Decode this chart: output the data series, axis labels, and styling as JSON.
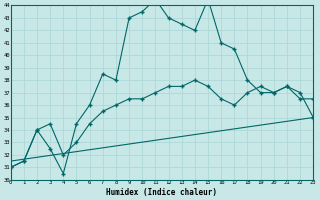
{
  "xlabel": "Humidex (Indice chaleur)",
  "bg_color": "#c8e8e8",
  "line_color": "#006666",
  "grid_color": "#b0d8d8",
  "xmin": 0,
  "xmax": 23,
  "ymin": 30,
  "ymax": 44,
  "xtick_labels": [
    "0",
    "1",
    "2",
    "3",
    "4",
    "5",
    "6",
    "7",
    "8",
    "9",
    "10",
    "11",
    "12",
    "13",
    "14",
    "15",
    "16",
    "17",
    "18",
    "19",
    "20",
    "21",
    "22",
    "23"
  ],
  "ytick_labels": [
    "30",
    "31",
    "32",
    "33",
    "34",
    "35",
    "36",
    "37",
    "38",
    "39",
    "40",
    "41",
    "42",
    "43",
    "44"
  ],
  "line1_x": [
    0,
    1,
    2,
    3,
    4,
    5,
    6,
    7,
    8,
    9,
    10,
    11,
    12,
    13,
    14,
    15,
    16,
    17,
    18,
    19,
    20,
    21,
    22,
    23
  ],
  "line1_y": [
    31.0,
    31.5,
    34.0,
    32.5,
    30.5,
    34.5,
    36.0,
    38.5,
    38.0,
    43.0,
    43.5,
    44.5,
    43.0,
    42.5,
    42.0,
    44.5,
    41.0,
    40.5,
    38.0,
    37.0,
    37.0,
    37.5,
    36.5,
    36.5
  ],
  "line2_x": [
    0,
    1,
    2,
    3,
    4,
    5,
    6,
    7,
    8,
    9,
    10,
    11,
    12,
    13,
    14,
    15,
    16,
    17,
    18,
    19,
    20,
    21,
    22,
    23
  ],
  "line2_y": [
    31.0,
    31.5,
    34.0,
    34.5,
    32.0,
    33.0,
    34.5,
    35.5,
    36.0,
    36.5,
    36.5,
    37.0,
    37.5,
    37.5,
    38.0,
    37.5,
    36.5,
    36.0,
    37.0,
    37.5,
    37.0,
    37.5,
    37.0,
    35.0
  ],
  "line3_x": [
    0,
    23
  ],
  "line3_y": [
    31.5,
    35.0
  ]
}
